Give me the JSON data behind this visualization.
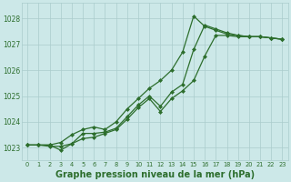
{
  "background_color": "#cce8e8",
  "grid_color": "#aacccc",
  "line_color": "#2d6e2d",
  "marker_color": "#2d6e2d",
  "title": "Graphe pression niveau de la mer (hPa)",
  "title_fontsize": 7,
  "xlim": [
    -0.5,
    23.5
  ],
  "ylim": [
    1022.5,
    1028.6
  ],
  "yticks": [
    1023,
    1024,
    1025,
    1026,
    1027,
    1028
  ],
  "xticks": [
    0,
    1,
    2,
    3,
    4,
    5,
    6,
    7,
    8,
    9,
    10,
    11,
    12,
    13,
    14,
    15,
    16,
    17,
    18,
    19,
    20,
    21,
    22,
    23
  ],
  "series1_x": [
    0,
    1,
    2,
    3,
    4,
    5,
    6,
    7,
    8,
    9,
    10,
    11,
    12,
    13,
    14,
    15,
    16,
    17,
    18,
    19,
    20,
    21,
    22,
    23
  ],
  "series1_y": [
    1023.1,
    1023.1,
    1023.1,
    1023.2,
    1023.5,
    1023.7,
    1023.8,
    1023.7,
    1024.0,
    1024.5,
    1024.9,
    1025.3,
    1025.6,
    1026.0,
    1026.7,
    1028.1,
    1027.7,
    1027.55,
    1027.4,
    1027.35,
    1027.3,
    1027.3,
    1027.25,
    1027.2
  ],
  "series2_x": [
    0,
    1,
    2,
    3,
    4,
    5,
    6,
    7,
    8,
    9,
    10,
    11,
    12,
    13,
    14,
    15,
    16,
    17,
    18,
    19,
    20,
    21,
    22,
    23
  ],
  "series2_y": [
    1023.1,
    1023.1,
    1023.1,
    1022.9,
    1023.15,
    1023.55,
    1023.55,
    1023.6,
    1023.75,
    1024.2,
    1024.65,
    1025.0,
    1024.6,
    1025.15,
    1025.45,
    1026.8,
    1027.75,
    1027.6,
    1027.45,
    1027.35,
    1027.3,
    1027.3,
    1027.25,
    1027.2
  ],
  "series3_x": [
    0,
    1,
    2,
    3,
    4,
    5,
    6,
    7,
    8,
    9,
    10,
    11,
    12,
    13,
    14,
    15,
    16,
    17,
    18,
    19,
    20,
    21,
    22,
    23
  ],
  "series3_y": [
    1023.1,
    1023.1,
    1023.05,
    1023.05,
    1023.15,
    1023.35,
    1023.4,
    1023.55,
    1023.7,
    1024.1,
    1024.55,
    1024.9,
    1024.4,
    1024.9,
    1025.2,
    1025.6,
    1026.55,
    1027.35,
    1027.35,
    1027.3,
    1027.3,
    1027.3,
    1027.25,
    1027.2
  ]
}
